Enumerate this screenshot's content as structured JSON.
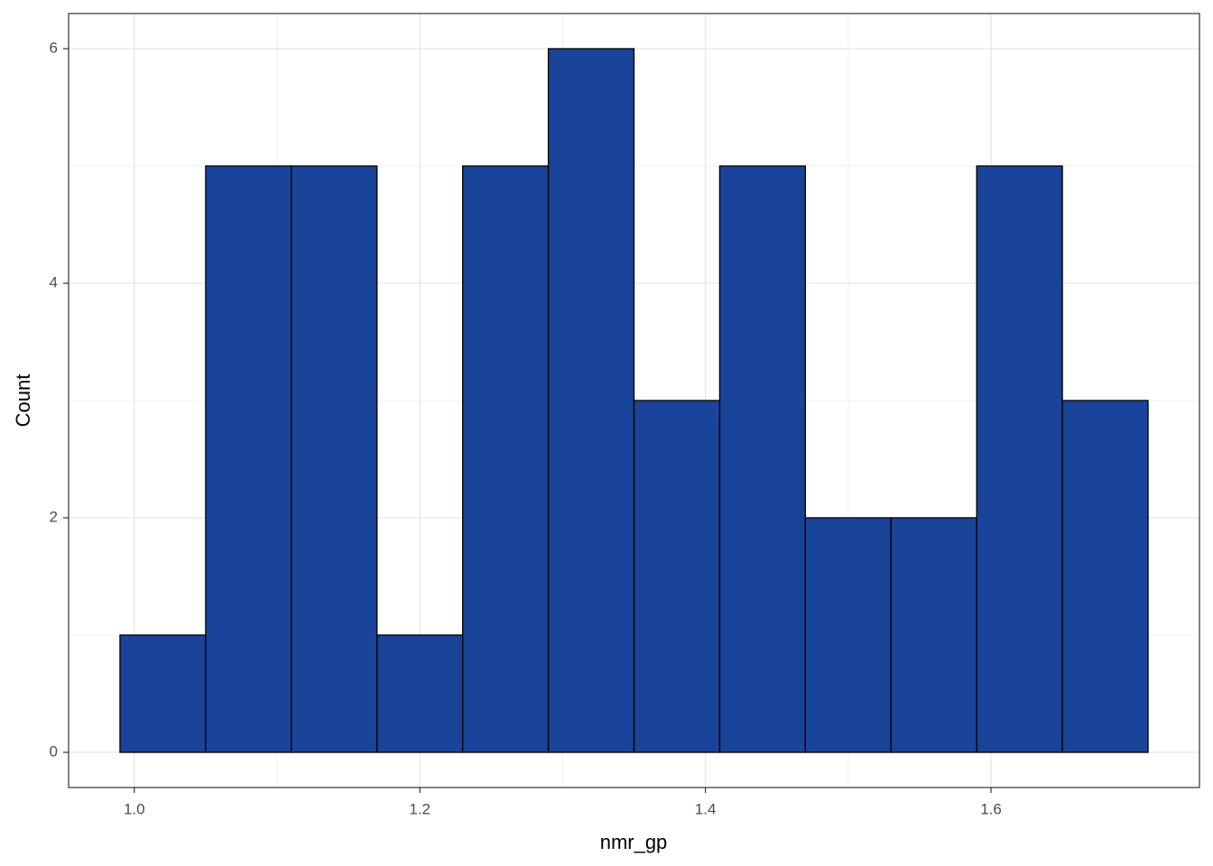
{
  "chart_data": {
    "type": "histogram",
    "x_label": "nmr_gp",
    "y_label": "Count",
    "bins": [
      0.99,
      1.05,
      1.11,
      1.17,
      1.23,
      1.29,
      1.35,
      1.41,
      1.47,
      1.53,
      1.59,
      1.65,
      1.71
    ],
    "values": [
      1,
      5,
      5,
      1,
      5,
      6,
      3,
      5,
      2,
      2,
      5,
      3
    ],
    "color": "#1a4499",
    "edge_color": "#000000",
    "xlim": [
      0.954,
      1.746
    ],
    "ylim": [
      -0.3,
      6.3
    ],
    "xticks": [
      {
        "value": 1,
        "label": "1.0"
      },
      {
        "value": 1.2,
        "label": "1.2"
      },
      {
        "value": 1.4,
        "label": "1.4"
      },
      {
        "value": 1.6,
        "label": "1.6"
      }
    ],
    "yticks": [
      0,
      2,
      4,
      6
    ],
    "grid": true
  }
}
